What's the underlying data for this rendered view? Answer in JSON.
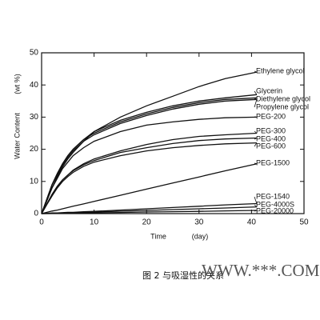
{
  "chart_data": {
    "type": "line",
    "y_label": "Water Content",
    "y_unit": "(wt %)",
    "x_label": "Time",
    "x_unit": "(day)",
    "caption": "图 2   与吸湿性的关系",
    "watermark": "WWW.***.COM",
    "x": [
      0,
      1,
      2,
      3,
      4,
      5,
      6,
      8,
      10,
      15,
      20,
      25,
      30,
      35,
      41
    ],
    "xlim": [
      0,
      50
    ],
    "xticks": [
      0,
      10,
      20,
      30,
      40,
      50
    ],
    "ylim": [
      0,
      50
    ],
    "yticks": [
      0,
      10,
      20,
      30,
      40,
      50
    ],
    "color": "#111111",
    "series": [
      {
        "name": "Ethylene glycol",
        "values": [
          0,
          4,
          8,
          11.5,
          14.5,
          17,
          19,
          22.5,
          25.5,
          30,
          33.5,
          36.5,
          39.5,
          42,
          44
        ]
      },
      {
        "name": "Glycerin",
        "values": [
          0,
          4.5,
          9,
          12.5,
          15.5,
          18,
          20,
          23,
          25.5,
          29,
          31.5,
          33.5,
          35,
          36,
          37
        ]
      },
      {
        "name": "Diethylene glycol",
        "values": [
          0,
          4.5,
          9,
          12.5,
          15.5,
          18,
          20,
          23,
          25,
          28.5,
          31,
          33,
          34.5,
          35.5,
          36
        ]
      },
      {
        "name": "Propylene glycol",
        "values": [
          0,
          4.5,
          9,
          12,
          15,
          17.5,
          19.5,
          22.5,
          24.5,
          28,
          30.5,
          32.5,
          34,
          35,
          35.5
        ]
      },
      {
        "name": "PEG-200",
        "values": [
          0,
          4,
          8,
          11,
          14,
          16,
          18,
          20.5,
          22.5,
          25.5,
          27.5,
          28.5,
          29.3,
          29.8,
          30
        ]
      },
      {
        "name": "PEG-300",
        "values": [
          0,
          3,
          6,
          8.5,
          10.5,
          12,
          13.5,
          15.5,
          17,
          19.5,
          21.5,
          23,
          24,
          24.5,
          25
        ]
      },
      {
        "name": "PEG-400",
        "values": [
          0,
          3,
          6,
          8.5,
          10.5,
          12,
          13.3,
          15.2,
          16.5,
          19,
          20.5,
          21.8,
          22.7,
          23.2,
          23.5
        ]
      },
      {
        "name": "PEG-600",
        "values": [
          0,
          2.8,
          5.5,
          8,
          10,
          11.5,
          12.8,
          14.7,
          16,
          18,
          19.5,
          20.5,
          21.2,
          21.7,
          22
        ]
      },
      {
        "name": "PEG-1500",
        "values": [
          0,
          0.4,
          0.8,
          1.1,
          1.5,
          1.9,
          2.3,
          3,
          3.8,
          5.7,
          7.6,
          9.5,
          11.4,
          13.3,
          15.5
        ]
      },
      {
        "name": "PEG-1540",
        "values": [
          0,
          0.1,
          0.2,
          0.2,
          0.3,
          0.4,
          0.4,
          0.6,
          0.7,
          1.1,
          1.5,
          1.9,
          2.3,
          2.7,
          3.1
        ]
      },
      {
        "name": "PEG-4000S",
        "values": [
          0,
          0.05,
          0.1,
          0.15,
          0.2,
          0.25,
          0.3,
          0.4,
          0.5,
          0.75,
          1,
          1.25,
          1.5,
          1.75,
          2.1
        ]
      },
      {
        "name": "PEG-20000",
        "values": [
          0,
          0,
          0.05,
          0.1,
          0.1,
          0.1,
          0.15,
          0.2,
          0.25,
          0.35,
          0.5,
          0.6,
          0.7,
          0.85,
          1
        ]
      }
    ]
  }
}
